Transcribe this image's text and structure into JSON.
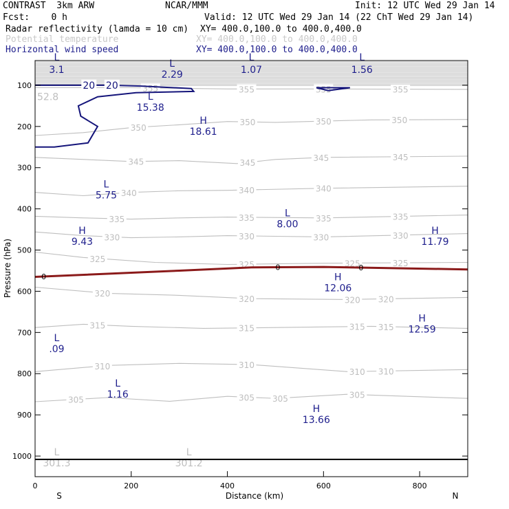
{
  "header": {
    "model": "CONTRAST  3km ARW",
    "org": "NCAR/MMM",
    "init": "Init: 12 UTC Wed 29 Jan 14",
    "fcst": "Fcst:    0 h",
    "valid": "Valid: 12 UTC Wed 29 Jan 14 (22 ChT Wed 29 Jan 14)",
    "field1": "Radar reflectivity (lamda = 10 cm)",
    "field1_xy": "XY= 400.0,100.0 to 400.0,400.0",
    "field2": "Potential temperature",
    "field2_xy": "XY= 400.0,100.0 to 400.0,400.0",
    "field3": "Horizontal wind speed",
    "field3_xy": "XY= 400.0,100.0 to 400.0,400.0"
  },
  "colors": {
    "theta": "#bebebe",
    "wind": "#14147a",
    "zero": "#8b1a1a",
    "text_navy": "#1e1e8c",
    "text_gray": "#c8c8c8"
  },
  "chart_data": {
    "type": "contour-cross-section",
    "xlabel": "Distance (km)",
    "ylabel": "Pressure (hPa)",
    "x_ticks": [
      "0",
      "200",
      "400",
      "600",
      "800"
    ],
    "y_ticks": [
      "100",
      "200",
      "300",
      "400",
      "500",
      "600",
      "700",
      "800",
      "900",
      "1000"
    ],
    "xlim": [
      0,
      900
    ],
    "ylim_pressure_top_to_bottom": [
      40,
      1050
    ],
    "y_scale": "linear",
    "end_labels": {
      "left": "S",
      "right": "N"
    },
    "potential_temperature": {
      "contours": [
        {
          "value": 355,
          "points": [
            [
              0,
              106
            ],
            [
              200,
              106
            ],
            [
              400,
              109
            ],
            [
              600,
              109
            ],
            [
              900,
              110
            ]
          ],
          "labels": [
            [
              240,
              "355"
            ],
            [
              440,
              "355"
            ],
            [
              600,
              "355"
            ],
            [
              760,
              "355"
            ]
          ]
        },
        {
          "value": 350,
          "points": [
            [
              0,
              222
            ],
            [
              100,
              215
            ],
            [
              200,
              203
            ],
            [
              300,
              196
            ],
            [
              400,
              188
            ],
            [
              500,
              190
            ],
            [
              600,
              187
            ],
            [
              700,
              184
            ],
            [
              900,
              183
            ]
          ],
          "labels": [
            [
              215,
              "350"
            ],
            [
              442,
              "350"
            ],
            [
              600,
              "350"
            ],
            [
              758,
              "350"
            ]
          ]
        },
        {
          "value": 345,
          "points": [
            [
              0,
              275
            ],
            [
              200,
              285
            ],
            [
              300,
              283
            ],
            [
              420,
              290
            ],
            [
              500,
              280
            ],
            [
              600,
              275
            ],
            [
              900,
              272
            ]
          ],
          "labels": [
            [
              210,
              "345"
            ],
            [
              442,
              "345"
            ],
            [
              595,
              "345"
            ],
            [
              760,
              "345"
            ]
          ]
        },
        {
          "value": 340,
          "points": [
            [
              0,
              360
            ],
            [
              100,
              368
            ],
            [
              200,
              360
            ],
            [
              300,
              356
            ],
            [
              400,
              355
            ],
            [
              600,
              350
            ],
            [
              900,
              345
            ]
          ],
          "labels": [
            [
              195,
              "340"
            ],
            [
              440,
              "340"
            ],
            [
              600,
              "340"
            ]
          ]
        },
        {
          "value": 335,
          "points": [
            [
              0,
              418
            ],
            [
              100,
              422
            ],
            [
              200,
              425
            ],
            [
              300,
              422
            ],
            [
              400,
              420
            ],
            [
              600,
              422
            ],
            [
              900,
              415
            ]
          ],
          "labels": [
            [
              170,
              "335"
            ],
            [
              440,
              "335"
            ],
            [
              600,
              "335"
            ],
            [
              760,
              "335"
            ]
          ]
        },
        {
          "value": 330,
          "points": [
            [
              0,
              456
            ],
            [
              100,
              465
            ],
            [
              200,
              470
            ],
            [
              300,
              468
            ],
            [
              400,
              465
            ],
            [
              600,
              468
            ],
            [
              900,
              460
            ]
          ],
          "labels": [
            [
              160,
              "330"
            ],
            [
              440,
              "330"
            ],
            [
              595,
              "330"
            ],
            [
              760,
              "330"
            ]
          ]
        },
        {
          "value": 325,
          "points": [
            [
              0,
              505
            ],
            [
              100,
              518
            ],
            [
              250,
              530
            ],
            [
              400,
              535
            ],
            [
              600,
              532
            ],
            [
              900,
              530
            ]
          ],
          "labels": [
            [
              130,
              "325"
            ],
            [
              440,
              "325"
            ],
            [
              660,
              "325"
            ],
            [
              760,
              "325"
            ]
          ]
        },
        {
          "value": 320,
          "points": [
            [
              0,
              590
            ],
            [
              150,
              605
            ],
            [
              300,
              610
            ],
            [
              450,
              618
            ],
            [
              650,
              620
            ],
            [
              900,
              615
            ]
          ],
          "labels": [
            [
              140,
              "320"
            ],
            [
              440,
              "320"
            ],
            [
              660,
              "320"
            ],
            [
              730,
              "320"
            ]
          ]
        },
        {
          "value": 315,
          "points": [
            [
              0,
              688
            ],
            [
              100,
              680
            ],
            [
              200,
              685
            ],
            [
              350,
              690
            ],
            [
              500,
              688
            ],
            [
              700,
              685
            ],
            [
              900,
              690
            ]
          ],
          "labels": [
            [
              130,
              "315"
            ],
            [
              440,
              "315"
            ],
            [
              670,
              "315"
            ],
            [
              730,
              "315"
            ]
          ]
        },
        {
          "value": 310,
          "points": [
            [
              0,
              795
            ],
            [
              150,
              780
            ],
            [
              300,
              775
            ],
            [
              450,
              778
            ],
            [
              650,
              795
            ],
            [
              900,
              790
            ]
          ],
          "labels": [
            [
              140,
              "310"
            ],
            [
              440,
              "310"
            ],
            [
              670,
              "310"
            ],
            [
              730,
              "310"
            ]
          ]
        },
        {
          "value": 305,
          "points": [
            [
              0,
              868
            ],
            [
              150,
              858
            ],
            [
              280,
              867
            ],
            [
              400,
              855
            ],
            [
              500,
              860
            ],
            [
              650,
              850
            ],
            [
              900,
              860
            ]
          ],
          "labels": [
            [
              85,
              "305"
            ],
            [
              440,
              "305"
            ],
            [
              510,
              "305"
            ],
            [
              670,
              "305"
            ]
          ]
        }
      ],
      "extrema": [
        {
          "type": "L",
          "value": "52.8",
          "x": 0,
          "p": 128,
          "partial": true
        },
        {
          "type": "L",
          "value": "301.3",
          "x": 45,
          "p": 1025
        },
        {
          "type": "L",
          "value": "301.2",
          "x": 320,
          "p": 1025
        }
      ]
    },
    "wind_speed": {
      "contours": [
        {
          "value": "20",
          "points": [
            [
              0,
              100
            ],
            [
              150,
              100
            ],
            [
              220,
              102
            ],
            [
              325,
              108
            ],
            [
              330,
              115
            ],
            [
              210,
              118
            ],
            [
              130,
              128
            ],
            [
              90,
              150
            ],
            [
              95,
              175
            ],
            [
              130,
              200
            ],
            [
              110,
              240
            ],
            [
              40,
              250
            ],
            [
              0,
              250
            ]
          ],
          "labels": [
            [
              160,
              "20"
            ],
            [
              112,
              "20"
            ]
          ]
        },
        {
          "value": "",
          "points": [
            [
              585,
              106
            ],
            [
              610,
              113
            ],
            [
              655,
              106
            ],
            [
              585,
              106
            ]
          ],
          "labels": []
        }
      ],
      "extrema": [
        {
          "type": "L",
          "value": "3.1",
          "x": 45,
          "p": 70,
          "symbol_p": 40
        },
        {
          "type": "L",
          "value": "2.29",
          "x": 285,
          "p": 82
        },
        {
          "type": "L",
          "value": "1.07",
          "x": 450,
          "p": 70,
          "symbol_p": 40
        },
        {
          "type": "L",
          "value": "1.56",
          "x": 680,
          "p": 70,
          "symbol_p": 40
        },
        {
          "type": "L",
          "value": "15.38",
          "x": 240,
          "p": 162
        },
        {
          "type": "H",
          "value": "18.61",
          "x": 350,
          "p": 220
        },
        {
          "type": "L",
          "value": "5.75",
          "x": 148,
          "p": 375
        },
        {
          "type": "L",
          "value": "8.00",
          "x": 525,
          "p": 445
        },
        {
          "type": "H",
          "value": "9.43",
          "x": 98,
          "p": 487
        },
        {
          "type": "H",
          "value": "11.79",
          "x": 832,
          "p": 487
        },
        {
          "type": "H",
          "value": "12.06",
          "x": 630,
          "p": 600
        },
        {
          "type": "H",
          "value": "12.59",
          "x": 805,
          "p": 700
        },
        {
          "type": "L",
          "value": ".09",
          "x": 45,
          "p": 748
        },
        {
          "type": "L",
          "value": "1.16",
          "x": 172,
          "p": 858
        },
        {
          "type": "H",
          "value": "13.66",
          "x": 585,
          "p": 920
        }
      ]
    },
    "zero_contour": {
      "points": [
        [
          0,
          565
        ],
        [
          300,
          550
        ],
        [
          450,
          542
        ],
        [
          600,
          541
        ],
        [
          900,
          547
        ]
      ],
      "labels": [
        [
          18,
          "0"
        ],
        [
          505,
          "0"
        ],
        [
          678,
          "0"
        ]
      ]
    },
    "ground_p": 1008
  }
}
